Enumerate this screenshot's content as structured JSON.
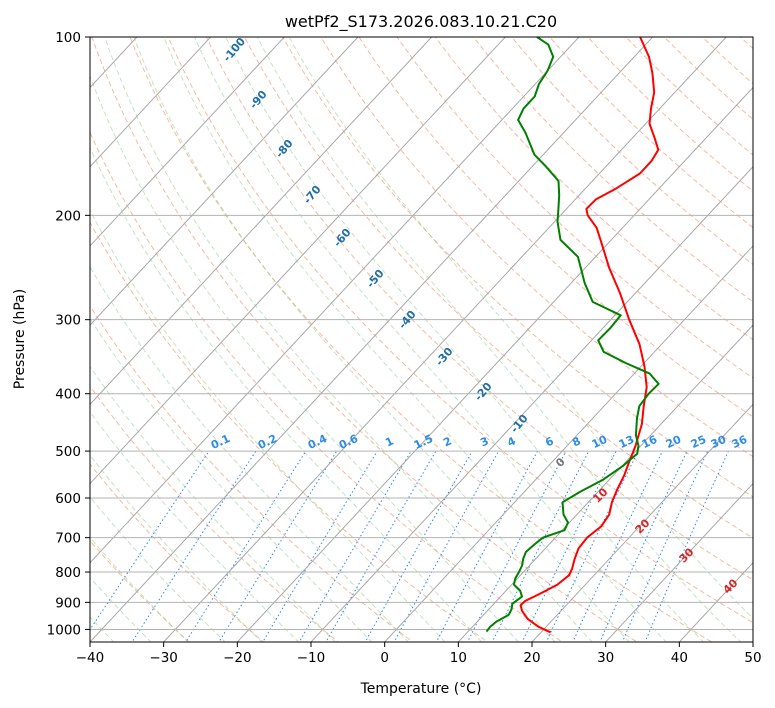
{
  "chart_data": {
    "type": "line",
    "title": "wetPf2_S173.2026.083.10.21.C20",
    "xlabel": "Temperature (°C)",
    "ylabel": "Pressure (hPa)",
    "xlim": [
      -40,
      50
    ],
    "ylim": [
      1050,
      100
    ],
    "y_scale": "log",
    "x_ticks": [
      -40,
      -30,
      -20,
      -10,
      0,
      10,
      20,
      30,
      40,
      50
    ],
    "y_ticks": [
      1000,
      900,
      800,
      700,
      600,
      500,
      400,
      300,
      200,
      100
    ],
    "grid": true,
    "skew_t": true,
    "series": [
      {
        "color": "#ff0000",
        "points": [
          [
            1011,
            21.3
          ],
          [
            990,
            19.0
          ],
          [
            960,
            16.5
          ],
          [
            930,
            14.7
          ],
          [
            910,
            13.8
          ],
          [
            895,
            13.9
          ],
          [
            870,
            15.0
          ],
          [
            840,
            16.2
          ],
          [
            810,
            16.6
          ],
          [
            790,
            16.2
          ],
          [
            760,
            15.3
          ],
          [
            730,
            14.5
          ],
          [
            700,
            14.3
          ],
          [
            670,
            14.8
          ],
          [
            640,
            14.4
          ],
          [
            610,
            13.2
          ],
          [
            580,
            12.3
          ],
          [
            550,
            11.5
          ],
          [
            520,
            10.4
          ],
          [
            490,
            9.3
          ],
          [
            450,
            7.4
          ],
          [
            420,
            5.4
          ],
          [
            390,
            3.4
          ],
          [
            360,
            0.5
          ],
          [
            330,
            -3.0
          ],
          [
            300,
            -7.5
          ],
          [
            270,
            -12.2
          ],
          [
            245,
            -16.8
          ],
          [
            225,
            -20.5
          ],
          [
            210,
            -23.5
          ],
          [
            200,
            -26.3
          ],
          [
            195,
            -27.3
          ],
          [
            188,
            -27.2
          ],
          [
            180,
            -25.8
          ],
          [
            170,
            -24.5
          ],
          [
            162,
            -24.5
          ],
          [
            155,
            -25.0
          ],
          [
            148,
            -27.0
          ],
          [
            140,
            -29.5
          ],
          [
            132,
            -31.2
          ],
          [
            124,
            -32.8
          ],
          [
            115,
            -35.5
          ],
          [
            108,
            -38.0
          ],
          [
            100,
            -41.7
          ]
        ]
      },
      {
        "color": "#008000",
        "points": [
          [
            1008,
            12.5
          ],
          [
            990,
            12.4
          ],
          [
            970,
            12.6
          ],
          [
            945,
            13.4
          ],
          [
            925,
            13.1
          ],
          [
            905,
            12.5
          ],
          [
            880,
            12.9
          ],
          [
            860,
            11.9
          ],
          [
            840,
            10.3
          ],
          [
            820,
            9.7
          ],
          [
            800,
            9.4
          ],
          [
            780,
            9.0
          ],
          [
            760,
            8.3
          ],
          [
            740,
            7.8
          ],
          [
            720,
            8.0
          ],
          [
            700,
            8.3
          ],
          [
            680,
            10.3
          ],
          [
            660,
            9.8
          ],
          [
            640,
            8.2
          ],
          [
            610,
            6.5
          ],
          [
            585,
            7.6
          ],
          [
            560,
            9.1
          ],
          [
            530,
            10.1
          ],
          [
            505,
            10.5
          ],
          [
            490,
            9.7
          ],
          [
            470,
            8.0
          ],
          [
            440,
            6.0
          ],
          [
            420,
            4.8
          ],
          [
            400,
            4.5
          ],
          [
            385,
            4.6
          ],
          [
            370,
            2.1
          ],
          [
            355,
            -2.5
          ],
          [
            340,
            -6.9
          ],
          [
            325,
            -9.1
          ],
          [
            310,
            -9.0
          ],
          [
            295,
            -9.2
          ],
          [
            280,
            -14.7
          ],
          [
            260,
            -18.2
          ],
          [
            235,
            -22.4
          ],
          [
            220,
            -26.9
          ],
          [
            205,
            -29.6
          ],
          [
            195,
            -31.1
          ],
          [
            185,
            -32.7
          ],
          [
            175,
            -34.6
          ],
          [
            165,
            -38.3
          ],
          [
            158,
            -41.2
          ],
          [
            152,
            -43.0
          ],
          [
            145,
            -45.2
          ],
          [
            138,
            -47.8
          ],
          [
            132,
            -48.5
          ],
          [
            126,
            -48.5
          ],
          [
            120,
            -49.5
          ],
          [
            114,
            -50.0
          ],
          [
            108,
            -51.0
          ],
          [
            103,
            -53.2
          ],
          [
            100,
            -55.7
          ]
        ]
      }
    ],
    "dry_adiabat_labels": [
      "-100",
      "-90",
      "-80",
      "-70",
      "-60",
      "-50",
      "-40",
      "-30",
      "-20",
      "-10"
    ],
    "saturation_adiabat_labels": [
      "0",
      "10",
      "20",
      "30",
      "40"
    ],
    "mixing_ratio_labels": [
      "0.1",
      "0.2",
      "0.4",
      "0.6",
      "1",
      "1.5",
      "2",
      "3",
      "4",
      "6",
      "8",
      "10",
      "13",
      "16",
      "20",
      "25",
      "30",
      "36"
    ]
  }
}
